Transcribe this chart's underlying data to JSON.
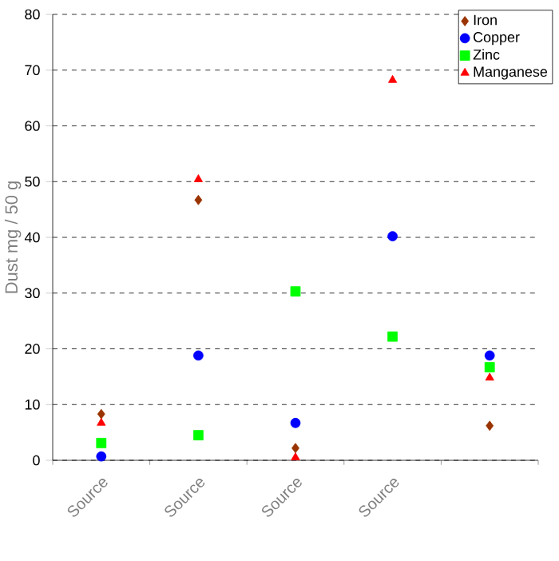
{
  "chart_data": {
    "type": "scatter",
    "ylabel": "Dust  mg / 50 g",
    "categories": [
      "Source",
      "Source",
      "Source",
      "Source",
      null
    ],
    "ylim": [
      0,
      80
    ],
    "yticks": [
      0,
      10,
      20,
      30,
      40,
      50,
      60,
      70,
      80
    ],
    "grid": "y",
    "legend": "top right",
    "series": [
      {
        "name": "Iron",
        "color": "#993300",
        "marker": "diamond",
        "values": [
          8.3,
          46.7,
          2.2,
          null,
          6.2
        ]
      },
      {
        "name": "Copper",
        "color": "#0000ff",
        "marker": "circle",
        "values": [
          0.7,
          18.8,
          6.7,
          40.2,
          18.8
        ]
      },
      {
        "name": "Zinc",
        "color": "#00ff00",
        "marker": "square",
        "values": [
          3.1,
          4.5,
          30.3,
          22.2,
          16.7
        ]
      },
      {
        "name": "Manganese",
        "color": "#ff0000",
        "marker": "triangle",
        "values": [
          6.7,
          50.4,
          0.5,
          68.2,
          14.8
        ]
      }
    ]
  }
}
